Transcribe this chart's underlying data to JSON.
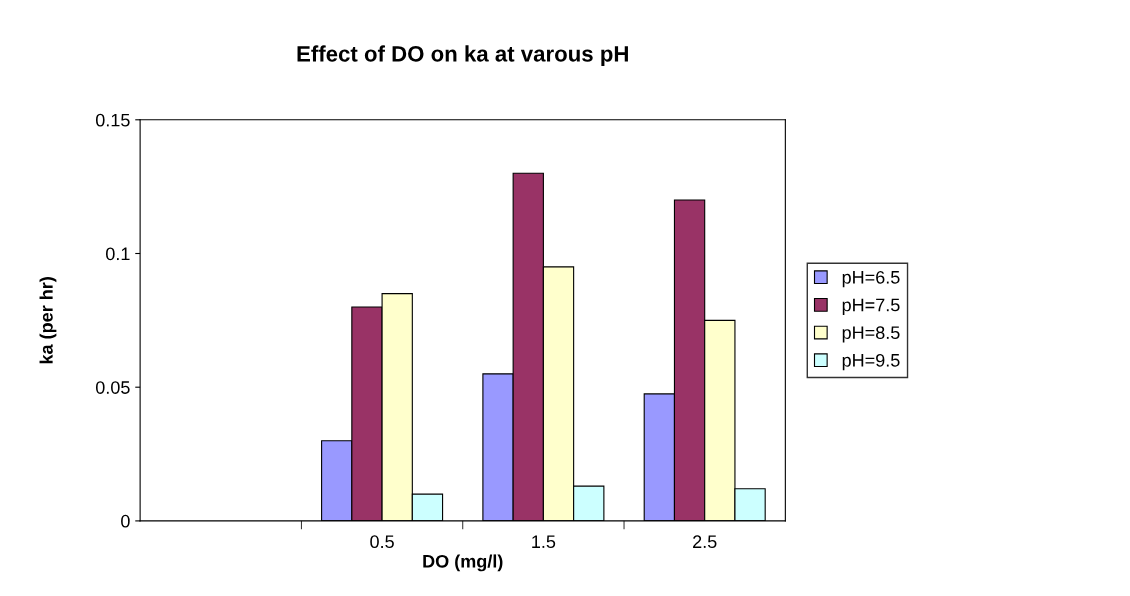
{
  "chart_data": {
    "type": "bar",
    "title": "Effect of DO on ka at varous pH",
    "xlabel": "DO (mg/l)",
    "ylabel": "ka (per hr)",
    "categories": [
      null,
      "0.5",
      "1.5",
      "2.5"
    ],
    "series": [
      {
        "name": "pH=6.5",
        "color": "#9999ff",
        "values": [
          null,
          0.03,
          0.055,
          0.0475
        ]
      },
      {
        "name": "pH=7.5",
        "color": "#993366",
        "values": [
          null,
          0.08,
          0.13,
          0.12
        ]
      },
      {
        "name": "pH=8.5",
        "color": "#ffffcc",
        "values": [
          null,
          0.085,
          0.095,
          0.075
        ]
      },
      {
        "name": "pH=9.5",
        "color": "#ccffff",
        "values": [
          null,
          0.01,
          0.013,
          0.012
        ]
      }
    ],
    "ylim": [
      0,
      0.15
    ],
    "yticks": [
      0,
      0.05,
      0.1,
      0.15
    ],
    "grid": false,
    "legend": "right"
  }
}
